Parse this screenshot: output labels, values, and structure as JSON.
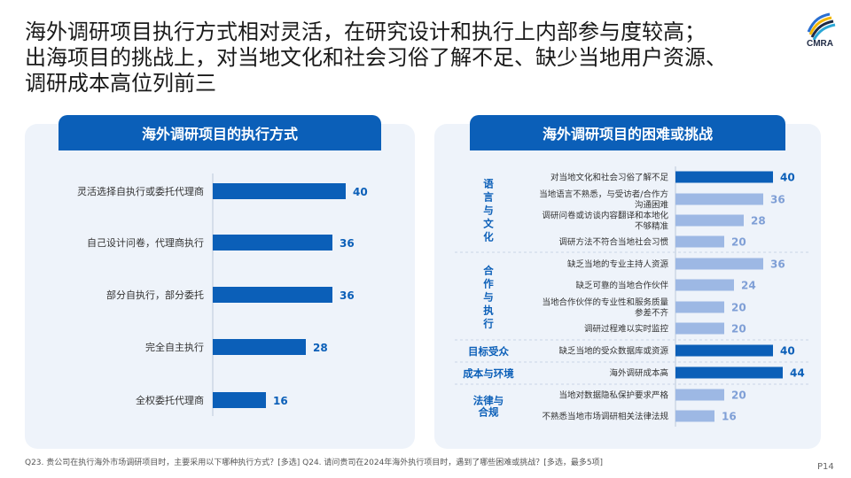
{
  "title": "海外调研项目执行方式相对灵活，在研究设计和执行上内部参与度较高；出海项目的挑战上，对当地文化和社会习俗了解不足、缺少当地用户资源、调研成本高位列前三",
  "title_lines": [
    "海外调研项目执行方式相对灵活，在研究设计和执行上内部参与度较高；",
    "出海项目的挑战上，对当地文化和社会习俗了解不足、缺少当地用户资源、",
    "调研成本高位列前三"
  ],
  "logo_text": "CMRA",
  "colors": {
    "primary": "#0b5fb8",
    "light_bar": "#9db8e4",
    "panel_bg": "#eef3fa",
    "group_label": "#0b5fb8"
  },
  "chart_data": [
    {
      "type": "bar",
      "orientation": "horizontal",
      "title": "海外调研项目的执行方式",
      "categories": [
        "灵活选择自执行或委托代理商",
        "自己设计问卷，代理商执行",
        "部分自执行，部分委托",
        "完全自主执行",
        "全权委托代理商"
      ],
      "values": [
        40,
        36,
        36,
        28,
        16
      ]
    },
    {
      "type": "bar",
      "orientation": "horizontal",
      "title": "海外调研项目的困难或挑战",
      "categories": [
        "对当地文化和社会习俗了解不足",
        "当地语言不熟悉，与受访者/合作方沟通困难",
        "调研问卷或访谈内容翻译和本地化不够精准",
        "调研方法不符合当地社会习惯",
        "缺乏当地的专业主持人资源",
        "缺乏可靠的当地合作伙伴",
        "当地合作伙伴的专业性和服务质量参差不齐",
        "调研过程难以实时监控",
        "缺乏当地的受众数据库或资源",
        "海外调研成本高",
        "当地对数据隐私保护要求严格",
        "不熟悉当地市场调研相关法律法规"
      ],
      "category_lines": [
        [
          "对当地文化和社会习俗了解不足"
        ],
        [
          "当地语言不熟悉，与受访者/合作方",
          "沟通困难"
        ],
        [
          "调研问卷或访谈内容翻译和本地化",
          "不够精准"
        ],
        [
          "调研方法不符合当地社会习惯"
        ],
        [
          "缺乏当地的专业主持人资源"
        ],
        [
          "缺乏可靠的当地合作伙伴"
        ],
        [
          "当地合作伙伴的专业性和服务质量",
          "参差不齐"
        ],
        [
          "调研过程难以实时监控"
        ],
        [
          "缺乏当地的受众数据库或资源"
        ],
        [
          "海外调研成本高"
        ],
        [
          "当地对数据隐私保护要求严格"
        ],
        [
          "不熟悉当地市场调研相关法律法规"
        ]
      ],
      "values": [
        40,
        36,
        28,
        20,
        36,
        24,
        20,
        20,
        40,
        44,
        20,
        16
      ],
      "highlight": [
        true,
        false,
        false,
        false,
        false,
        false,
        false,
        false,
        true,
        true,
        false,
        false
      ],
      "groups": [
        {
          "name": "语言与文化",
          "name_lines": [
            "语",
            "言",
            "与",
            "文",
            "化"
          ],
          "count": 4
        },
        {
          "name": "合作与执行",
          "name_lines": [
            "合",
            "作",
            "与",
            "执",
            "行"
          ],
          "count": 4
        },
        {
          "name": "目标受众",
          "name_lines": [
            "目标受众"
          ],
          "count": 1
        },
        {
          "name": "成本与环境",
          "name_lines": [
            "成本与环境"
          ],
          "count": 1
        },
        {
          "name": "法律与合规",
          "name_lines": [
            "法律与",
            "合规"
          ],
          "count": 2
        }
      ]
    }
  ],
  "footnote": "Q23. 贵公司在执行海外市场调研项目时，主要采用以下哪种执行方式？[多选]  Q24. 请问贵司在2024年海外执行项目时，遇到了哪些困难或挑战？[多选，最多5项]",
  "page_number": "P14"
}
